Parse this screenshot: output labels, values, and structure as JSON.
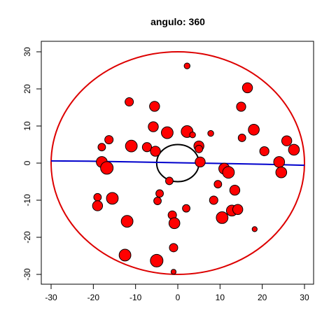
{
  "chart_data": {
    "type": "scatter",
    "title": "angulo: 360",
    "xlabel": "",
    "ylabel": "",
    "xlim": [
      -30,
      30
    ],
    "ylim": [
      -30,
      30
    ],
    "x_ticks": [
      -30,
      -20,
      -10,
      0,
      10,
      20,
      30
    ],
    "y_ticks": [
      -30,
      -20,
      -10,
      0,
      10,
      20,
      30
    ],
    "grid": false,
    "point_color": "#ff0000",
    "point_stroke": "#000000",
    "outer_circle": {
      "cx": 0,
      "cy": 0,
      "r": 30,
      "color": "#dd0000"
    },
    "inner_circle": {
      "cx": 0,
      "cy": 0,
      "r": 5,
      "color": "#000000"
    },
    "line": {
      "color": "#0000cc",
      "points": [
        [
          -30,
          0.6
        ],
        [
          -20,
          0.5
        ],
        [
          -10,
          0.3
        ],
        [
          0,
          0.1
        ],
        [
          10,
          -0.1
        ],
        [
          20,
          -0.3
        ],
        [
          30,
          -0.6
        ]
      ]
    },
    "points": [
      {
        "x": 2.2,
        "y": 26.2,
        "s": 0.7
      },
      {
        "x": -11.5,
        "y": 16.5,
        "s": 1.0
      },
      {
        "x": -5.5,
        "y": 15.3,
        "s": 1.2
      },
      {
        "x": 16.5,
        "y": 20.3,
        "s": 1.2
      },
      {
        "x": 15.0,
        "y": 15.2,
        "s": 1.1
      },
      {
        "x": -5.8,
        "y": 9.8,
        "s": 1.2
      },
      {
        "x": -2.5,
        "y": 8.2,
        "s": 1.4
      },
      {
        "x": 2.2,
        "y": 8.5,
        "s": 1.4
      },
      {
        "x": 3.5,
        "y": 7.6,
        "s": 0.7
      },
      {
        "x": 7.8,
        "y": 8.0,
        "s": 0.7
      },
      {
        "x": 18.0,
        "y": 9.0,
        "s": 1.3
      },
      {
        "x": 15.2,
        "y": 6.8,
        "s": 0.9
      },
      {
        "x": -16.3,
        "y": 6.3,
        "s": 1.0
      },
      {
        "x": -18.0,
        "y": 4.3,
        "s": 0.9
      },
      {
        "x": -11.0,
        "y": 4.6,
        "s": 1.4
      },
      {
        "x": -7.3,
        "y": 4.3,
        "s": 1.1
      },
      {
        "x": -5.3,
        "y": 3.2,
        "s": 1.2
      },
      {
        "x": 5.0,
        "y": 4.6,
        "s": 1.2
      },
      {
        "x": 5.0,
        "y": 3.8,
        "s": 0.9
      },
      {
        "x": 20.5,
        "y": 3.2,
        "s": 1.1
      },
      {
        "x": 25.8,
        "y": 6.0,
        "s": 1.2
      },
      {
        "x": 27.5,
        "y": 3.6,
        "s": 1.3
      },
      {
        "x": -18.0,
        "y": 0.3,
        "s": 1.3
      },
      {
        "x": -16.8,
        "y": -1.3,
        "s": 1.5
      },
      {
        "x": 5.3,
        "y": 0.3,
        "s": 1.2
      },
      {
        "x": 11.0,
        "y": -1.5,
        "s": 1.3
      },
      {
        "x": 12.0,
        "y": -2.5,
        "s": 1.4
      },
      {
        "x": 24.0,
        "y": 0.3,
        "s": 1.3
      },
      {
        "x": 24.5,
        "y": -2.5,
        "s": 1.3
      },
      {
        "x": -2.0,
        "y": -4.8,
        "s": 0.9
      },
      {
        "x": 9.5,
        "y": -5.7,
        "s": 0.9
      },
      {
        "x": 13.5,
        "y": -7.3,
        "s": 1.2
      },
      {
        "x": -4.3,
        "y": -8.2,
        "s": 0.9
      },
      {
        "x": -19.0,
        "y": -9.2,
        "s": 0.9
      },
      {
        "x": -15.5,
        "y": -9.5,
        "s": 1.4
      },
      {
        "x": -4.8,
        "y": -10.2,
        "s": 0.9
      },
      {
        "x": 8.5,
        "y": -10.0,
        "s": 1.0
      },
      {
        "x": -19.0,
        "y": -11.5,
        "s": 1.2
      },
      {
        "x": 2.0,
        "y": -12.2,
        "s": 0.9
      },
      {
        "x": 12.8,
        "y": -12.8,
        "s": 1.3
      },
      {
        "x": 14.2,
        "y": -12.5,
        "s": 1.2
      },
      {
        "x": -1.3,
        "y": -14.0,
        "s": 1.0
      },
      {
        "x": 10.5,
        "y": -14.7,
        "s": 1.4
      },
      {
        "x": -12.0,
        "y": -15.7,
        "s": 1.4
      },
      {
        "x": -0.8,
        "y": -16.2,
        "s": 1.3
      },
      {
        "x": 18.2,
        "y": -17.8,
        "s": 0.6
      },
      {
        "x": -1.0,
        "y": -22.8,
        "s": 1.0
      },
      {
        "x": -12.5,
        "y": -24.8,
        "s": 1.4
      },
      {
        "x": -5.0,
        "y": -26.3,
        "s": 1.5
      },
      {
        "x": -1.0,
        "y": -29.3,
        "s": 0.6
      }
    ]
  }
}
